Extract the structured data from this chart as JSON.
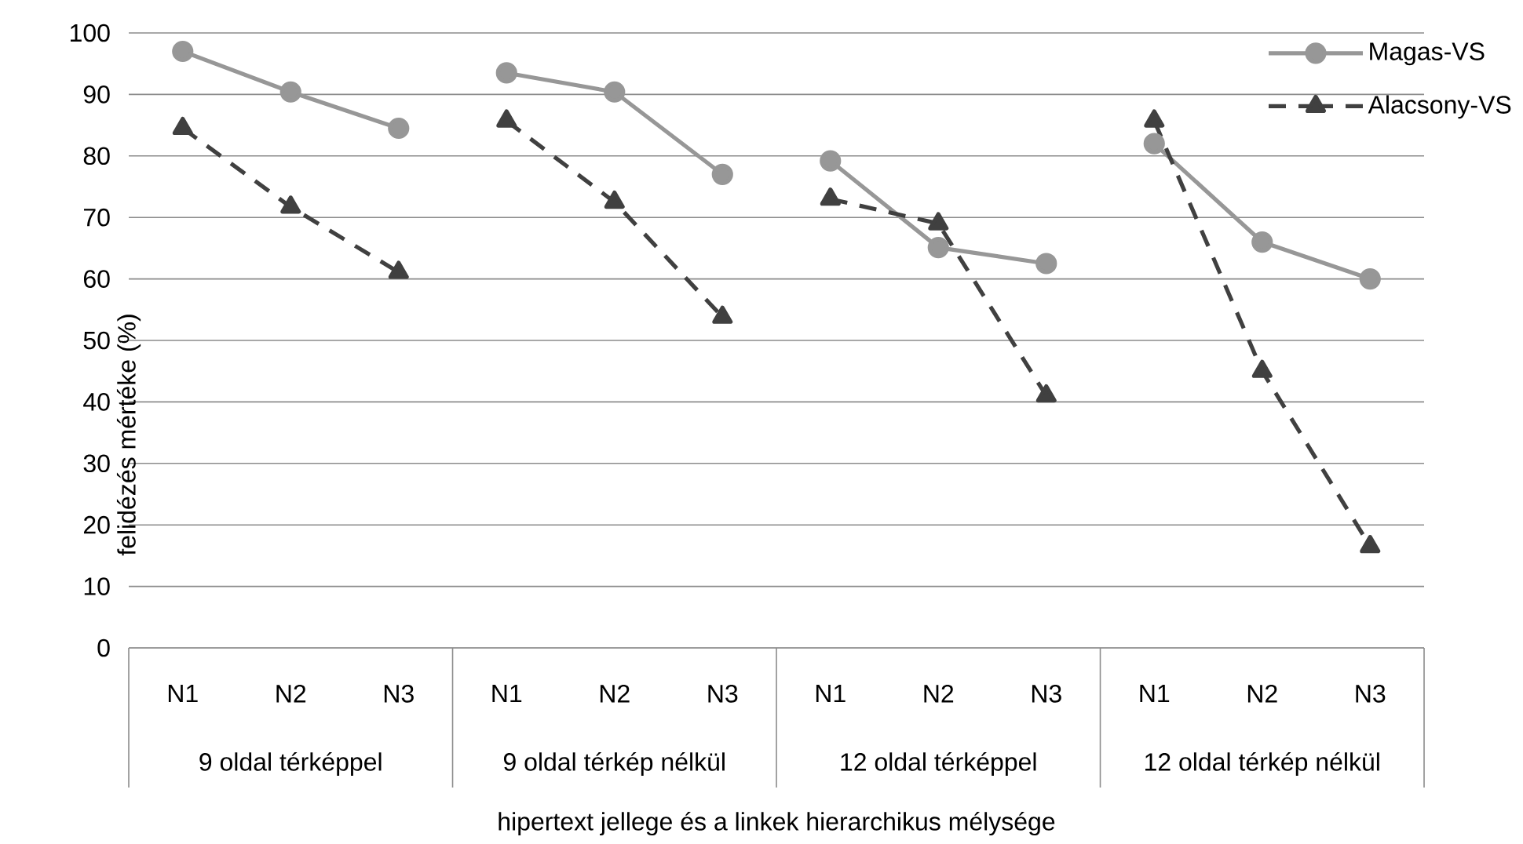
{
  "chart_data": {
    "type": "line",
    "xlabel": "hipertext jellege és a linkek hierarchikus mélysége",
    "ylabel": "felidézés mértéke (%)",
    "categories": [
      "N1",
      "N2",
      "N3",
      "N1",
      "N2",
      "N3",
      "N1",
      "N2",
      "N3",
      "N1",
      "N2",
      "N3"
    ],
    "annotations": [
      "9 oldal térképpel",
      "9 oldal térkép nélkül",
      "12 oldal térképpel",
      "12 oldal térkép nélkül"
    ],
    "ylim": [
      0,
      100
    ],
    "yticks": [
      0,
      10,
      20,
      30,
      40,
      50,
      60,
      70,
      80,
      90,
      100
    ],
    "grid": "y",
    "legend": "top right",
    "series": [
      {
        "name": "Magas-VS",
        "color": "#979797",
        "marker": "circle",
        "line_style": "solid",
        "values": [
          97,
          90.4,
          84.5,
          null,
          null,
          null,
          null,
          null,
          null,
          null,
          null,
          null
        ]
      },
      {
        "color": "#979797",
        "marker": "circle",
        "line_style": "solid",
        "values": [
          null,
          null,
          null,
          93.5,
          90.4,
          77,
          null,
          null,
          null,
          null,
          null,
          null
        ]
      },
      {
        "color": "#979797",
        "marker": "circle",
        "line_style": "solid",
        "values": [
          null,
          null,
          null,
          null,
          null,
          null,
          79.2,
          65.1,
          62.5,
          null,
          null,
          null
        ]
      },
      {
        "color": "#979797",
        "marker": "circle",
        "line_style": "solid",
        "values": [
          null,
          null,
          null,
          null,
          null,
          null,
          null,
          null,
          null,
          82,
          66,
          60
        ]
      },
      {
        "name": "Alacsony-VS",
        "color": "#404040",
        "marker": "triangle",
        "line_style": "dashed",
        "values": [
          84.5,
          71.7,
          61.1,
          null,
          null,
          null,
          null,
          null,
          null,
          null,
          null,
          null
        ]
      },
      {
        "color": "#404040",
        "marker": "triangle",
        "line_style": "dashed",
        "values": [
          null,
          null,
          null,
          85.7,
          72.5,
          53.8,
          null,
          null,
          null,
          null,
          null,
          null
        ]
      },
      {
        "color": "#404040",
        "marker": "triangle",
        "line_style": "dashed",
        "values": [
          null,
          null,
          null,
          null,
          null,
          null,
          73,
          69,
          41,
          null,
          null,
          null
        ]
      },
      {
        "color": "#404040",
        "marker": "triangle",
        "line_style": "dashed",
        "values": [
          null,
          null,
          null,
          null,
          null,
          null,
          null,
          null,
          null,
          85.7,
          45,
          16.5
        ]
      }
    ]
  }
}
